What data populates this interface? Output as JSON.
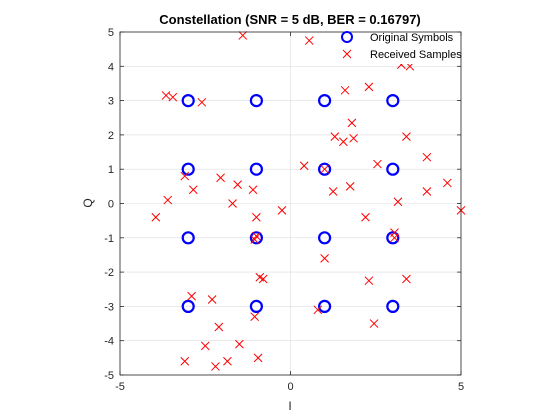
{
  "chart_data": {
    "type": "scatter",
    "title": "Constellation (SNR = 5 dB, BER = 0.16797)",
    "xlabel": "I",
    "ylabel": "Q",
    "xlim": [
      -5,
      5
    ],
    "ylim": [
      -5,
      5
    ],
    "xticks": [
      -5,
      0,
      5
    ],
    "yticks": [
      -5,
      -4,
      -3,
      -2,
      -1,
      0,
      1,
      2,
      3,
      4,
      5
    ],
    "grid": true,
    "legend_position": "top-right",
    "series": [
      {
        "name": "Original Symbols",
        "marker": "circle",
        "color": "#0000ff",
        "points": [
          [
            -3,
            3
          ],
          [
            -1,
            3
          ],
          [
            1,
            3
          ],
          [
            3,
            3
          ],
          [
            -3,
            1
          ],
          [
            -1,
            1
          ],
          [
            1,
            1
          ],
          [
            3,
            1
          ],
          [
            -3,
            -1
          ],
          [
            -1,
            -1
          ],
          [
            1,
            -1
          ],
          [
            3,
            -1
          ],
          [
            -3,
            -3
          ],
          [
            -1,
            -3
          ],
          [
            1,
            -3
          ],
          [
            3,
            -3
          ]
        ]
      },
      {
        "name": "Received Samples",
        "marker": "x",
        "color": "#ff0000",
        "points": [
          [
            -1.4,
            4.9
          ],
          [
            0.55,
            4.75
          ],
          [
            3.25,
            4.05
          ],
          [
            3.5,
            4.0
          ],
          [
            -3.65,
            3.15
          ],
          [
            -3.45,
            3.1
          ],
          [
            -2.6,
            2.95
          ],
          [
            1.6,
            3.3
          ],
          [
            2.3,
            3.4
          ],
          [
            1.8,
            2.35
          ],
          [
            1.3,
            1.95
          ],
          [
            1.55,
            1.8
          ],
          [
            1.85,
            1.9
          ],
          [
            3.4,
            1.95
          ],
          [
            4.0,
            1.35
          ],
          [
            0.4,
            1.1
          ],
          [
            1.0,
            1.0
          ],
          [
            2.55,
            1.15
          ],
          [
            -3.1,
            0.8
          ],
          [
            -2.85,
            0.4
          ],
          [
            -2.05,
            0.75
          ],
          [
            -1.55,
            0.55
          ],
          [
            -1.1,
            0.4
          ],
          [
            -3.6,
            0.1
          ],
          [
            -1.7,
            0.0
          ],
          [
            1.25,
            0.35
          ],
          [
            1.75,
            0.5
          ],
          [
            3.15,
            0.05
          ],
          [
            4.0,
            0.35
          ],
          [
            4.6,
            0.6
          ],
          [
            5.0,
            -0.2
          ],
          [
            -0.25,
            -0.2
          ],
          [
            -3.95,
            -0.4
          ],
          [
            -1.0,
            -0.4
          ],
          [
            2.2,
            -0.4
          ],
          [
            3.05,
            -0.85
          ],
          [
            -1.0,
            -0.95
          ],
          [
            -1.05,
            -1.05
          ],
          [
            1.0,
            -1.6
          ],
          [
            3.05,
            -1.0
          ],
          [
            -0.9,
            -2.15
          ],
          [
            -0.8,
            -2.2
          ],
          [
            2.3,
            -2.25
          ],
          [
            3.4,
            -2.2
          ],
          [
            -2.9,
            -2.7
          ],
          [
            -2.3,
            -2.8
          ],
          [
            -1.05,
            -3.3
          ],
          [
            0.8,
            -3.1
          ],
          [
            2.45,
            -3.5
          ],
          [
            -2.1,
            -3.6
          ],
          [
            -1.5,
            -4.1
          ],
          [
            -2.5,
            -4.15
          ],
          [
            -0.95,
            -4.5
          ],
          [
            -3.1,
            -4.6
          ],
          [
            -1.85,
            -4.6
          ],
          [
            -2.2,
            -4.75
          ]
        ]
      }
    ]
  }
}
